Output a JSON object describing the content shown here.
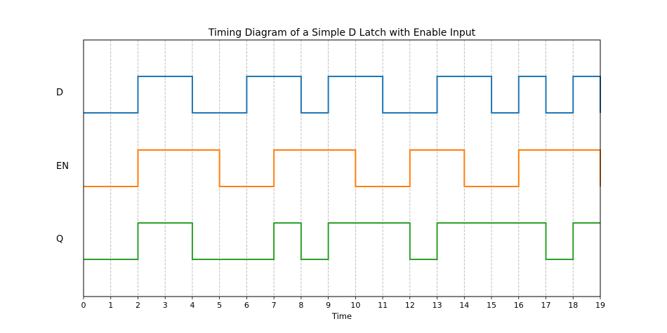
{
  "chart_data": {
    "type": "line",
    "subtype": "step",
    "title": "Timing Diagram of a Simple D Latch with Enable Input",
    "xlabel": "Time",
    "ylabel": "",
    "xlim": [
      0,
      19
    ],
    "xticks": [
      0,
      1,
      2,
      3,
      4,
      5,
      6,
      7,
      8,
      9,
      10,
      11,
      12,
      13,
      14,
      15,
      16,
      17,
      18,
      19
    ],
    "grid": "vertical dashed",
    "legend": "none",
    "time": [
      0,
      1,
      2,
      3,
      4,
      5,
      6,
      7,
      8,
      9,
      10,
      11,
      12,
      13,
      14,
      15,
      16,
      17,
      18,
      19
    ],
    "series": [
      {
        "name": "D",
        "color": "#1f77b4",
        "values": [
          0,
          0,
          1,
          1,
          0,
          0,
          1,
          1,
          0,
          1,
          1,
          0,
          0,
          1,
          1,
          0,
          1,
          0,
          1,
          0
        ]
      },
      {
        "name": "EN",
        "color": "#ff7f0e",
        "values": [
          0,
          0,
          1,
          1,
          1,
          0,
          0,
          1,
          1,
          1,
          0,
          0,
          1,
          1,
          0,
          0,
          1,
          1,
          1,
          0
        ]
      },
      {
        "name": "Q",
        "color": "#2ca02c",
        "values": [
          0,
          0,
          1,
          1,
          0,
          0,
          0,
          1,
          0,
          1,
          1,
          1,
          0,
          1,
          1,
          1,
          1,
          0,
          1,
          1
        ]
      }
    ]
  }
}
